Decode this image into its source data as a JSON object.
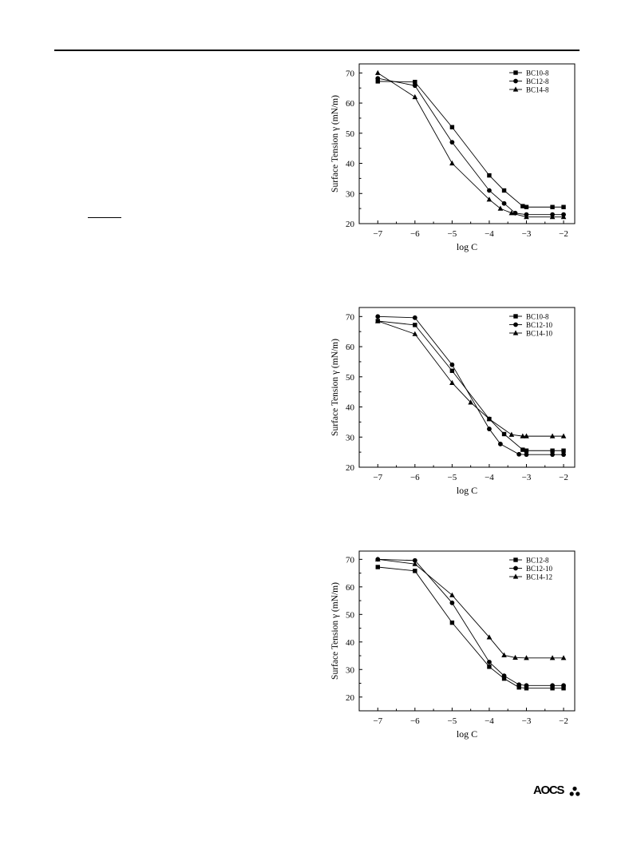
{
  "publisher_logo": {
    "text": "AOCS"
  },
  "chart_data": [
    {
      "type": "line",
      "xlabel": "log C",
      "ylabel": "Surface Tension  γ  (mN/m)",
      "xlim": [
        -7.5,
        -1.7
      ],
      "ylim": [
        20,
        73
      ],
      "xticks": [
        -7,
        -6,
        -5,
        -4,
        -3,
        -2
      ],
      "xtick_labels": [
        "−7",
        "−6",
        "−5",
        "−4",
        "−3",
        "−2"
      ],
      "yticks": [
        20,
        30,
        40,
        50,
        60,
        70
      ],
      "legend_position": "top-right",
      "grid": false,
      "series": [
        {
          "name": "BC10-8",
          "marker": "square",
          "x": [
            -7,
            -6,
            -5,
            -4,
            -3.6,
            -3.1,
            -3,
            -2.3,
            -2
          ],
          "y": [
            67.2,
            67,
            52,
            36,
            31,
            25.8,
            25.5,
            25.5,
            25.5
          ]
        },
        {
          "name": "BC12-8",
          "marker": "circle",
          "x": [
            -7,
            -6,
            -5,
            -4,
            -3.6,
            -3.3,
            -3,
            -2.3,
            -2
          ],
          "y": [
            68.2,
            65.8,
            47,
            31,
            26.7,
            23.5,
            23,
            23,
            23
          ]
        },
        {
          "name": "BC14-8",
          "marker": "triangle",
          "x": [
            -7,
            -6,
            -5,
            -4,
            -3.7,
            -3.4,
            -3,
            -2.3,
            -2
          ],
          "y": [
            70,
            62,
            40,
            28,
            25,
            23.5,
            22.2,
            22.2,
            22.2
          ]
        }
      ]
    },
    {
      "type": "line",
      "xlabel": "log C",
      "ylabel": "Surface Tension  γ  (mN/m)",
      "xlim": [
        -7.5,
        -1.7
      ],
      "ylim": [
        20,
        73
      ],
      "xticks": [
        -7,
        -6,
        -5,
        -4,
        -3,
        -2
      ],
      "xtick_labels": [
        "−7",
        "−6",
        "−5",
        "−4",
        "−3",
        "−2"
      ],
      "yticks": [
        20,
        30,
        40,
        50,
        60,
        70
      ],
      "legend_position": "top-right",
      "grid": false,
      "series": [
        {
          "name": "BC10-8",
          "marker": "square",
          "x": [
            -7,
            -6,
            -5,
            -4,
            -3.6,
            -3.1,
            -3,
            -2.3,
            -2
          ],
          "y": [
            68.5,
            67.2,
            52,
            36,
            31,
            25.8,
            25.5,
            25.5,
            25.5
          ]
        },
        {
          "name": "BC12-10",
          "marker": "circle",
          "x": [
            -7,
            -6,
            -5,
            -4,
            -3.7,
            -3.2,
            -3,
            -2.3,
            -2
          ],
          "y": [
            70,
            69.6,
            54,
            32.7,
            27.7,
            24.3,
            24.2,
            24.2,
            24.2
          ]
        },
        {
          "name": "BC14-10",
          "marker": "triangle",
          "x": [
            -7,
            -6,
            -5,
            -4.5,
            -4,
            -3.4,
            -3.1,
            -3,
            -2.3,
            -2
          ],
          "y": [
            68.5,
            64.2,
            48,
            41.5,
            36,
            30.8,
            30.3,
            30.3,
            30.3,
            30.3
          ]
        }
      ]
    },
    {
      "type": "line",
      "xlabel": "log C",
      "ylabel": "Surface Tension  γ  (mN/m)",
      "xlim": [
        -7.5,
        -1.7
      ],
      "ylim": [
        15,
        73
      ],
      "xticks": [
        -7,
        -6,
        -5,
        -4,
        -3,
        -2
      ],
      "xtick_labels": [
        "−7",
        "−6",
        "−5",
        "−4",
        "−3",
        "−2"
      ],
      "yticks": [
        20,
        30,
        40,
        50,
        60,
        70
      ],
      "legend_position": "top-right",
      "grid": false,
      "series": [
        {
          "name": "BC12-8",
          "marker": "square",
          "x": [
            -7,
            -6,
            -5,
            -4,
            -3.6,
            -3.2,
            -3,
            -2.3,
            -2
          ],
          "y": [
            67.2,
            65.8,
            47,
            31,
            26.7,
            23.5,
            23.2,
            23.2,
            23.2
          ]
        },
        {
          "name": "BC12-10",
          "marker": "circle",
          "x": [
            -7,
            -6,
            -5,
            -4,
            -3.6,
            -3.2,
            -3,
            -2.3,
            -2
          ],
          "y": [
            70,
            69.6,
            54.2,
            32.7,
            27.7,
            24.5,
            24.2,
            24.2,
            24.2
          ]
        },
        {
          "name": "BC14-12",
          "marker": "triangle",
          "x": [
            -7,
            -6,
            -5,
            -4,
            -3.6,
            -3.3,
            -3,
            -2.3,
            -2
          ],
          "y": [
            70,
            68.3,
            57,
            41.7,
            35.2,
            34.3,
            34.2,
            34.2,
            34.2
          ]
        }
      ]
    }
  ]
}
